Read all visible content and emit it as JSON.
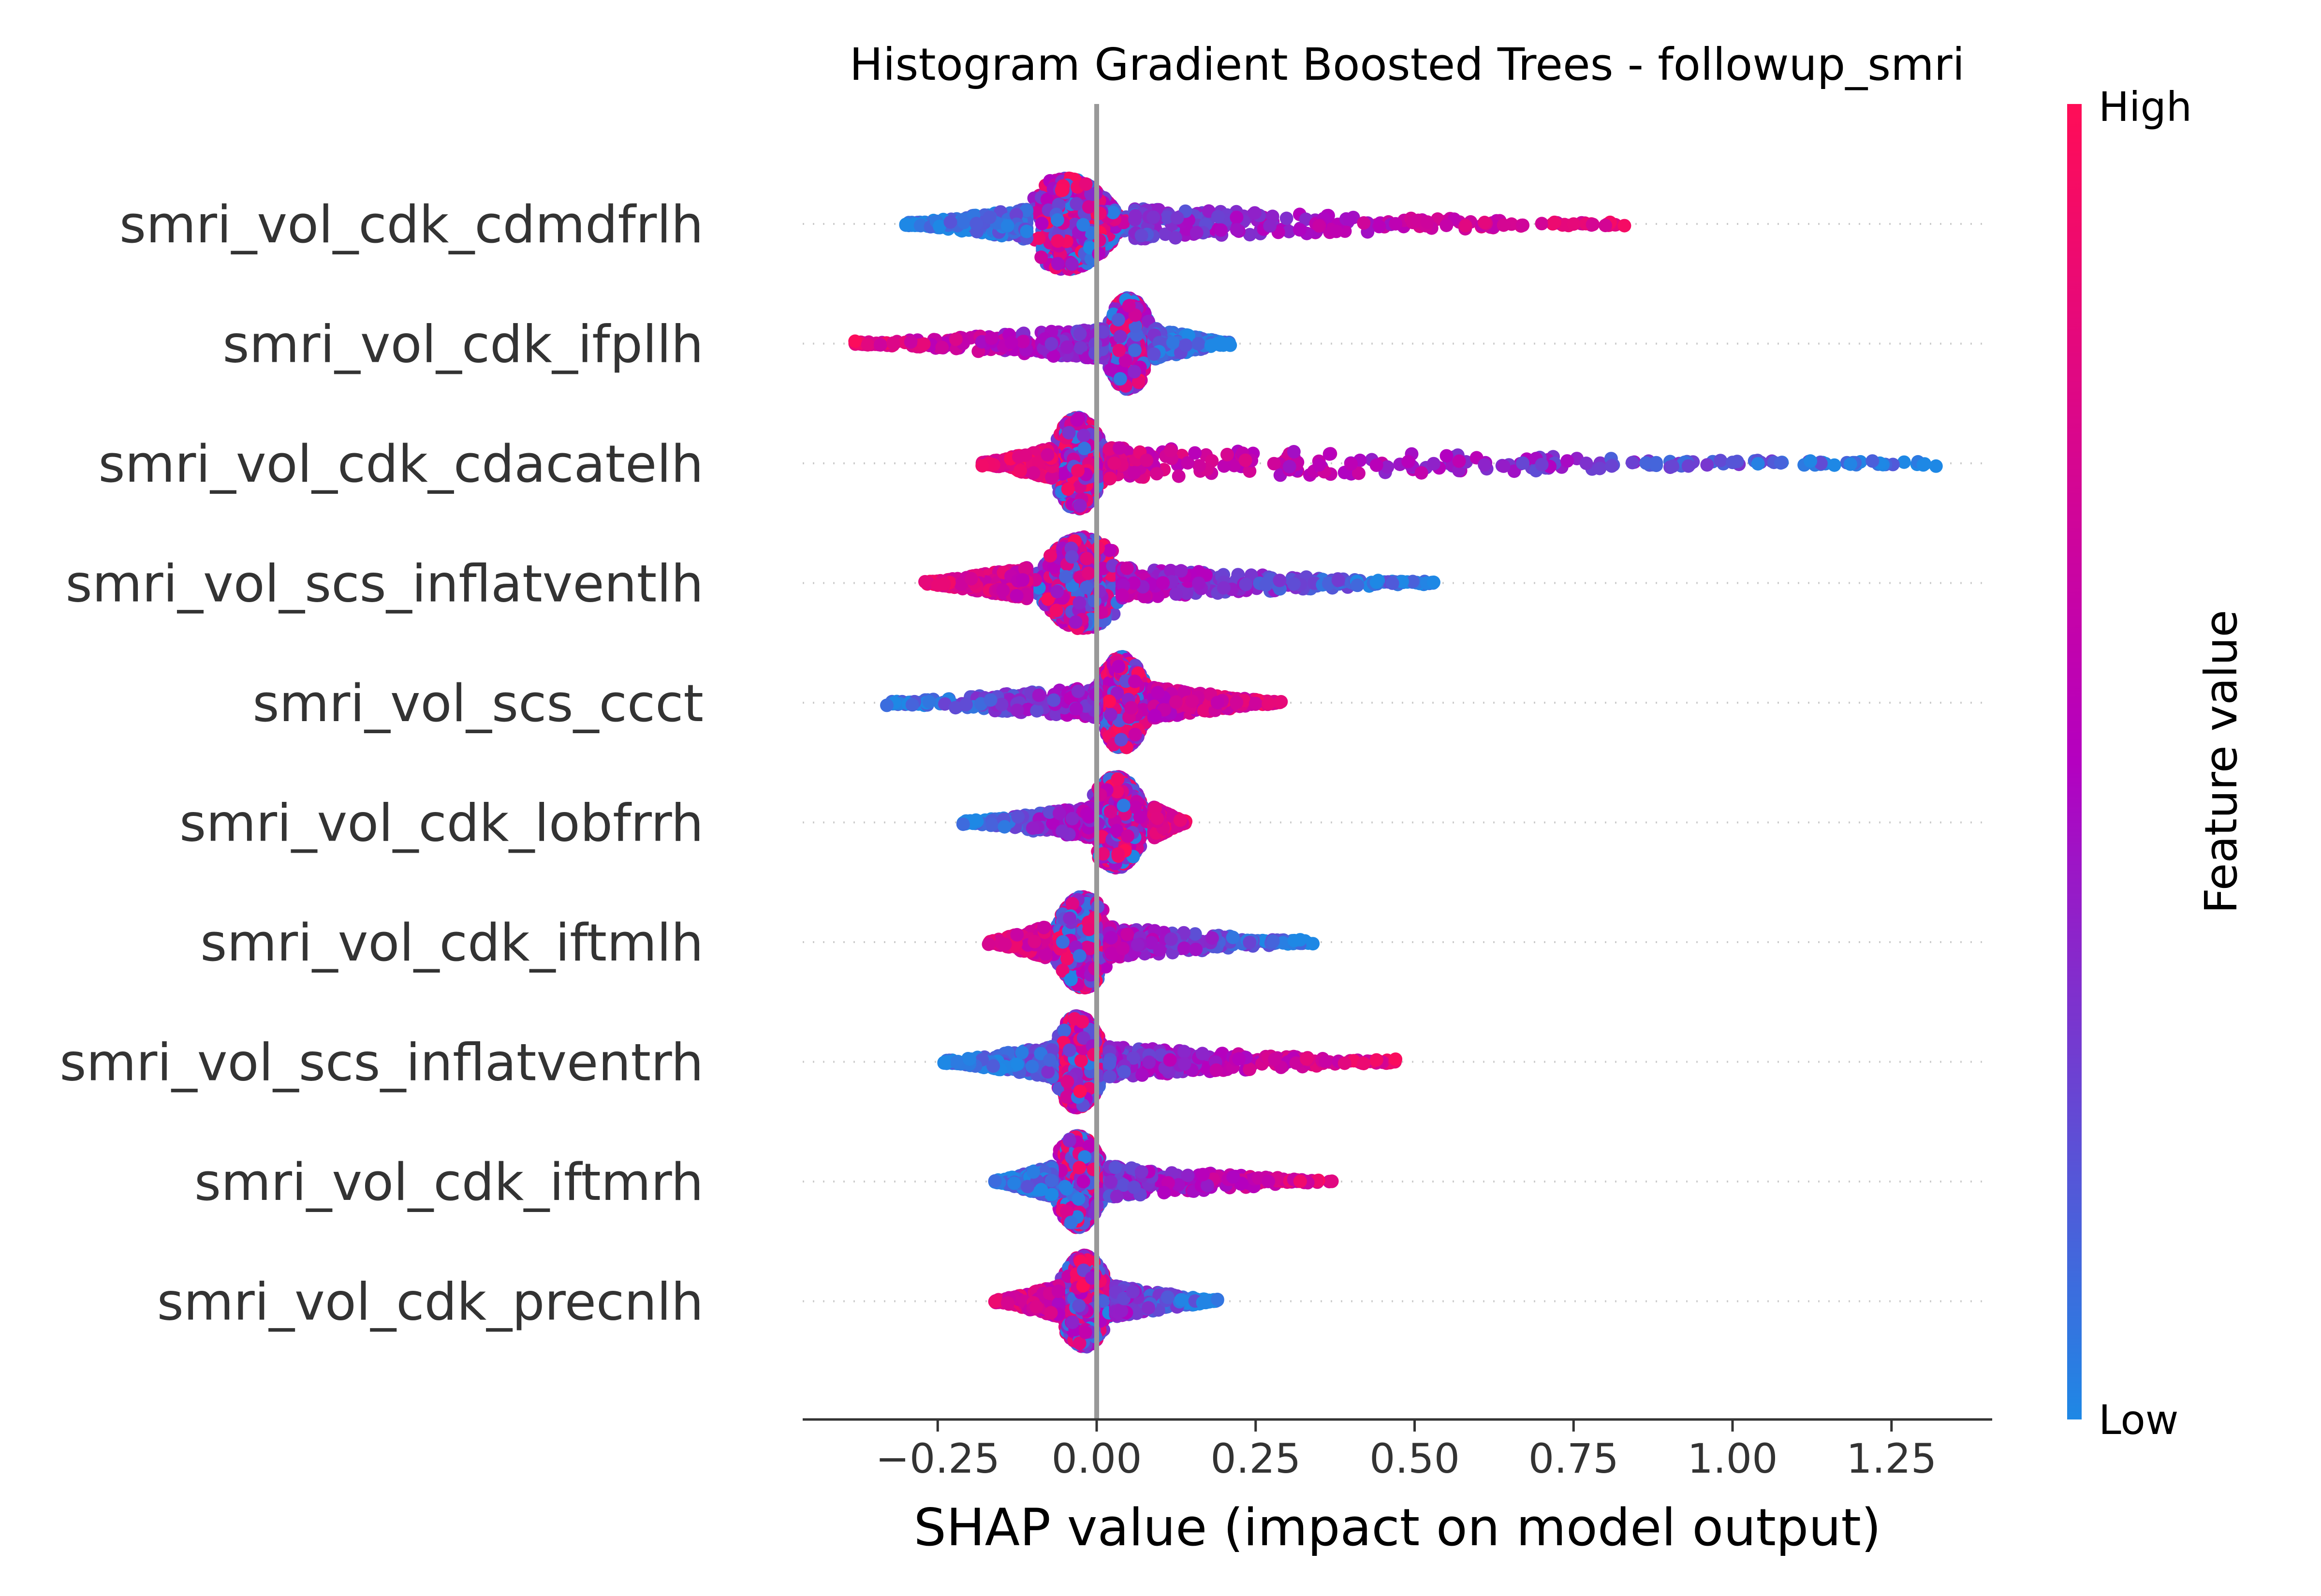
{
  "chart_data": {
    "type": "scatter",
    "title": "Histogram Gradient Boosted Trees - followup_smri",
    "xlabel": "SHAP value (impact on model output)",
    "ylabel": "",
    "xlim": [
      -0.46,
      1.41
    ],
    "x_ticks": [
      -0.25,
      0.0,
      0.25,
      0.5,
      0.75,
      1.0,
      1.25
    ],
    "x_tick_labels": [
      "−0.25",
      "0.00",
      "0.25",
      "0.50",
      "0.75",
      "1.00",
      "1.25"
    ],
    "grid": false,
    "legend": "colorbar-right",
    "colorbar": {
      "label": "Feature value",
      "high_label": "High",
      "low_label": "Low",
      "high_color": "#ff0d57",
      "mid_color": "#b400c0",
      "low_color": "#1e88e5"
    },
    "features": [
      {
        "name": "smri_vol_cdk_cdmdfrlh",
        "min": -0.3,
        "max": 0.83,
        "core_lo": -0.11,
        "core_hi": 0.06,
        "peak": -0.05,
        "high_side": "right",
        "outliers": [
          -0.3,
          -0.23,
          0.35,
          0.42,
          0.47,
          0.52,
          0.55,
          0.58,
          0.61,
          0.64,
          0.67,
          0.7,
          0.72,
          0.75,
          0.78,
          0.8,
          0.83
        ]
      },
      {
        "name": "smri_vol_cdk_ifpllh",
        "min": -0.38,
        "max": 0.21,
        "core_lo": 0.01,
        "core_hi": 0.09,
        "peak": 0.05,
        "high_side": "left",
        "outliers": [
          -0.38,
          -0.36,
          -0.34,
          -0.32,
          0.14,
          0.16,
          0.18,
          0.21
        ]
      },
      {
        "name": "smri_vol_cdk_cdacatelh",
        "min": -0.18,
        "max": 1.32,
        "core_lo": -0.07,
        "core_hi": 0.02,
        "peak": -0.03,
        "high_side": "left",
        "outliers": [
          -0.18,
          0.35,
          0.4,
          0.44,
          0.49,
          0.53,
          0.57,
          0.61,
          0.64,
          0.67,
          0.7,
          0.74,
          0.77,
          0.81,
          0.88,
          0.96,
          1.0,
          1.04,
          1.22,
          1.3,
          1.32
        ]
      },
      {
        "name": "smri_vol_scs_inflatventlh",
        "min": -0.27,
        "max": 0.53,
        "core_lo": -0.11,
        "core_hi": 0.04,
        "peak": -0.02,
        "high_side": "left",
        "outliers": [
          -0.27,
          -0.25,
          0.38,
          0.41,
          0.44,
          0.53
        ]
      },
      {
        "name": "smri_vol_scs_ccct",
        "min": -0.33,
        "max": 0.29,
        "core_lo": 0.0,
        "core_hi": 0.09,
        "peak": 0.04,
        "high_side": "right",
        "outliers": [
          -0.33,
          -0.29,
          0.15,
          0.19,
          0.22,
          0.25,
          0.27,
          0.29
        ]
      },
      {
        "name": "smri_vol_cdk_lobfrrh",
        "min": -0.21,
        "max": 0.14,
        "core_lo": -0.01,
        "core_hi": 0.09,
        "peak": 0.03,
        "high_side": "right",
        "outliers": [
          -0.21,
          -0.19
        ]
      },
      {
        "name": "smri_vol_cdk_iftmlh",
        "min": -0.17,
        "max": 0.34,
        "core_lo": -0.08,
        "core_hi": 0.02,
        "peak": -0.02,
        "high_side": "left",
        "outliers": [
          -0.17,
          0.32,
          0.34
        ]
      },
      {
        "name": "smri_vol_scs_inflatventrh",
        "min": -0.24,
        "max": 0.47,
        "core_lo": -0.07,
        "core_hi": 0.02,
        "peak": -0.03,
        "high_side": "right",
        "outliers": [
          -0.24,
          -0.2,
          0.28,
          0.33,
          0.36,
          0.39,
          0.42,
          0.44,
          0.47
        ]
      },
      {
        "name": "smri_vol_cdk_iftmrh",
        "min": -0.16,
        "max": 0.37,
        "core_lo": -0.07,
        "core_hi": 0.02,
        "peak": -0.03,
        "high_side": "right",
        "outliers": [
          -0.16,
          -0.13,
          0.27,
          0.32,
          0.37
        ]
      },
      {
        "name": "smri_vol_cdk_precnlh",
        "min": -0.16,
        "max": 0.19,
        "core_lo": -0.06,
        "core_hi": 0.03,
        "peak": -0.02,
        "high_side": "left",
        "outliers": [
          -0.16,
          -0.14,
          0.17,
          0.19
        ]
      }
    ]
  }
}
